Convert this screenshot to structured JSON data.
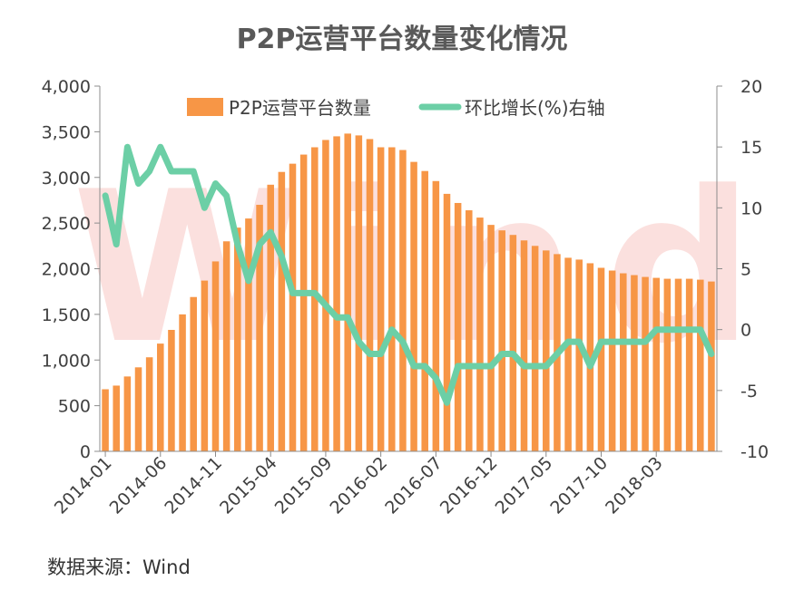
{
  "chart_data": {
    "type": "bar",
    "title": "P2P运营平台数量变化情况",
    "source": "数据来源：Wind",
    "x_tick_labels": [
      "2014-01",
      "2014-06",
      "2014-11",
      "2015-04",
      "2015-09",
      "2016-02",
      "2016-07",
      "2016-12",
      "2017-05",
      "2017-10",
      "2018-03"
    ],
    "y_left_ticks": [
      "0",
      "500",
      "1,000",
      "1,500",
      "2,000",
      "2,500",
      "3,000",
      "3,500",
      "4,000"
    ],
    "y_right_ticks": [
      "-10",
      "-5",
      "0",
      "5",
      "10",
      "15",
      "20"
    ],
    "ylim_left": [
      0,
      4000
    ],
    "ylim_right": [
      -10,
      20
    ],
    "grid": "vertical-axes-only",
    "legend_position": "top",
    "categories": [
      "2014-01",
      "2014-02",
      "2014-03",
      "2014-04",
      "2014-05",
      "2014-06",
      "2014-07",
      "2014-08",
      "2014-09",
      "2014-10",
      "2014-11",
      "2014-12",
      "2015-01",
      "2015-02",
      "2015-03",
      "2015-04",
      "2015-05",
      "2015-06",
      "2015-07",
      "2015-08",
      "2015-09",
      "2015-10",
      "2015-11",
      "2015-12",
      "2016-01",
      "2016-02",
      "2016-03",
      "2016-04",
      "2016-05",
      "2016-06",
      "2016-07",
      "2016-08",
      "2016-09",
      "2016-10",
      "2016-11",
      "2016-12",
      "2017-01",
      "2017-02",
      "2017-03",
      "2017-04",
      "2017-05",
      "2017-06",
      "2017-07",
      "2017-08",
      "2017-09",
      "2017-10",
      "2017-11",
      "2017-12",
      "2018-01",
      "2018-02",
      "2018-03",
      "2018-04",
      "2018-05",
      "2018-06",
      "2018-07",
      "2018-08"
    ],
    "series": [
      {
        "name": "P2P运营平台数量",
        "type": "bar",
        "axis": "left",
        "color": "#F79646",
        "values": [
          680,
          720,
          820,
          920,
          1030,
          1180,
          1330,
          1500,
          1690,
          1870,
          2080,
          2300,
          2450,
          2550,
          2700,
          2920,
          3060,
          3150,
          3250,
          3330,
          3410,
          3450,
          3480,
          3460,
          3420,
          3330,
          3330,
          3300,
          3170,
          3070,
          2960,
          2820,
          2720,
          2640,
          2560,
          2480,
          2420,
          2370,
          2310,
          2250,
          2200,
          2160,
          2120,
          2100,
          2060,
          2010,
          1980,
          1950,
          1930,
          1910,
          1900,
          1890,
          1890,
          1890,
          1880,
          1860
        ]
      },
      {
        "name": "环比增长(%)右轴",
        "type": "line",
        "axis": "right",
        "color": "#6CCFA6",
        "values": [
          11,
          7,
          15,
          12,
          13,
          15,
          13,
          13,
          13,
          10,
          12,
          11,
          7,
          4,
          7,
          8,
          6,
          3,
          3,
          3,
          2,
          1,
          1,
          -1,
          -2,
          -2,
          0,
          -1,
          -3,
          -3,
          -4,
          -6,
          -3,
          -3,
          -3,
          -3,
          -2,
          -2,
          -3,
          -3,
          -3,
          -2,
          -1,
          -1,
          -3,
          -1,
          -1,
          -1,
          -1,
          -1,
          0,
          0,
          0,
          0,
          0,
          -2
        ]
      }
    ],
    "watermark": "Wind"
  }
}
